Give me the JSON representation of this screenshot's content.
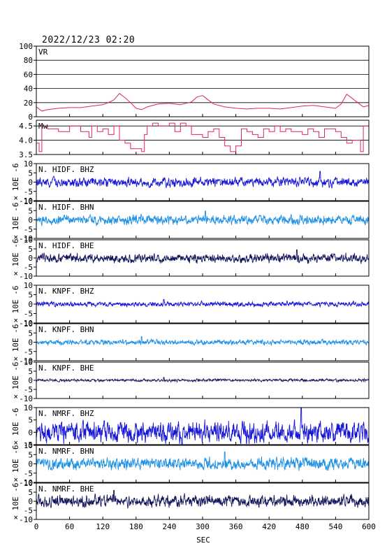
{
  "header": {
    "datetime": "2022/12/23 02:20"
  },
  "chart_data": {
    "type": "line",
    "xlabel": "SEC",
    "xlim": [
      0,
      600
    ],
    "xticks": [
      0,
      60,
      120,
      180,
      240,
      300,
      360,
      420,
      480,
      540,
      600
    ],
    "ylabel": "× 10E -6",
    "panels": [
      {
        "name": "VR",
        "ylim": [
          0,
          100
        ],
        "yticks": [
          0,
          20,
          40,
          60,
          80,
          100
        ],
        "grid": true,
        "color": "#e0245e",
        "x": [
          0,
          10,
          20,
          40,
          60,
          80,
          100,
          120,
          130,
          140,
          150,
          160,
          170,
          180,
          190,
          200,
          220,
          240,
          260,
          280,
          290,
          300,
          310,
          320,
          340,
          360,
          380,
          400,
          420,
          440,
          460,
          480,
          500,
          520,
          540,
          550,
          560,
          570,
          580,
          590,
          600
        ],
        "values": [
          14,
          8,
          10,
          12,
          13,
          13,
          15,
          17,
          20,
          24,
          33,
          27,
          20,
          12,
          10,
          14,
          18,
          19,
          17,
          21,
          28,
          30,
          24,
          18,
          14,
          12,
          11,
          12,
          12,
          11,
          13,
          15,
          16,
          14,
          12,
          18,
          32,
          26,
          20,
          14,
          16
        ]
      },
      {
        "name": "Mw",
        "ylim": [
          3.5,
          4.7
        ],
        "yticks": [
          3.5,
          4.0,
          4.5
        ],
        "ytick_labels": [
          "3.5",
          "4.0",
          "4.5"
        ],
        "grid": true,
        "color": "#e0245e",
        "x": [
          0,
          5,
          10,
          20,
          40,
          60,
          80,
          95,
          100,
          110,
          120,
          130,
          140,
          150,
          160,
          170,
          180,
          190,
          195,
          200,
          210,
          220,
          240,
          250,
          260,
          270,
          280,
          300,
          310,
          320,
          330,
          340,
          350,
          360,
          370,
          380,
          390,
          400,
          410,
          420,
          430,
          440,
          450,
          460,
          480,
          490,
          500,
          510,
          520,
          540,
          550,
          560,
          570,
          580,
          585,
          590,
          600
        ],
        "values": [
          3.9,
          3.6,
          4.5,
          4.4,
          4.3,
          4.5,
          4.3,
          4.1,
          4.5,
          4.3,
          4.4,
          4.2,
          4.5,
          4.0,
          3.9,
          3.7,
          3.7,
          3.6,
          4.2,
          4.5,
          4.6,
          4.5,
          4.6,
          4.3,
          4.6,
          4.5,
          4.2,
          4.1,
          4.3,
          4.4,
          4.1,
          3.8,
          3.6,
          3.8,
          4.4,
          4.3,
          4.2,
          4.1,
          4.4,
          4.3,
          4.5,
          4.3,
          4.4,
          4.3,
          4.2,
          4.4,
          4.3,
          4.1,
          4.4,
          4.3,
          4.1,
          3.9,
          4.0,
          4.0,
          3.6,
          4.5,
          4.3
        ]
      }
    ],
    "traces": [
      {
        "name": "N. HIDF. BHZ",
        "ylim": [
          -10,
          10
        ],
        "yticks": [
          -10,
          -5,
          0,
          5,
          10
        ],
        "color": "#1414d8",
        "amplitude": 2.0,
        "peak": 5.8,
        "peak_x": 512,
        "min": -4.8
      },
      {
        "name": "N. HIDF. BHN",
        "ylim": [
          -10,
          10
        ],
        "yticks": [
          -10,
          -5,
          0,
          5,
          10
        ],
        "color": "#1e90e6",
        "amplitude": 2.0,
        "peak": 4.8,
        "peak_x": 305,
        "min": -4.2
      },
      {
        "name": "N. HIDF. BHE",
        "ylim": [
          -10,
          10
        ],
        "yticks": [
          -10,
          -5,
          0,
          5,
          10
        ],
        "color": "#14145a",
        "amplitude": 2.0,
        "peak": 4.5,
        "peak_x": 470,
        "min": -4.5
      },
      {
        "name": "N. KNPF. BHZ",
        "ylim": [
          -10,
          10
        ],
        "yticks": [
          -10,
          -5,
          0,
          5,
          10
        ],
        "color": "#1414d8",
        "amplitude": 1.0,
        "peak": 2.5,
        "peak_x": 230,
        "min": -2.2
      },
      {
        "name": "N. KNPF. BHN",
        "ylim": [
          -10,
          10
        ],
        "yticks": [
          -10,
          -5,
          0,
          5,
          10
        ],
        "color": "#1e90e6",
        "amplitude": 1.1,
        "peak": 3.0,
        "peak_x": 190,
        "min": -3.0
      },
      {
        "name": "N. KNPF. BHE",
        "ylim": [
          -10,
          10
        ],
        "yticks": [
          -10,
          -5,
          0,
          5,
          10
        ],
        "color": "#14145a",
        "amplitude": 0.6,
        "peak": 1.6,
        "peak_x": 230,
        "min": -1.5
      },
      {
        "name": "N. NMRF. BHZ",
        "ylim": [
          -5,
          10
        ],
        "yticks": [
          -5,
          0,
          5,
          10
        ],
        "color": "#1414d8",
        "amplitude": 3.5,
        "peak": 10.5,
        "peak_x": 478,
        "min": -5.0
      },
      {
        "name": "N. NMRF. BHN",
        "ylim": [
          -10,
          10
        ],
        "yticks": [
          -10,
          -5,
          0,
          5,
          10
        ],
        "color": "#1e90e6",
        "amplitude": 2.6,
        "peak": 6.5,
        "peak_x": 340,
        "min": -6.0
      },
      {
        "name": "N. NMRF. BHE",
        "ylim": [
          -10,
          10
        ],
        "yticks": [
          -10,
          -5,
          0,
          5,
          10
        ],
        "color": "#14145a",
        "amplitude": 2.6,
        "peak": 6.0,
        "peak_x": 140,
        "min": -6.0
      }
    ]
  }
}
